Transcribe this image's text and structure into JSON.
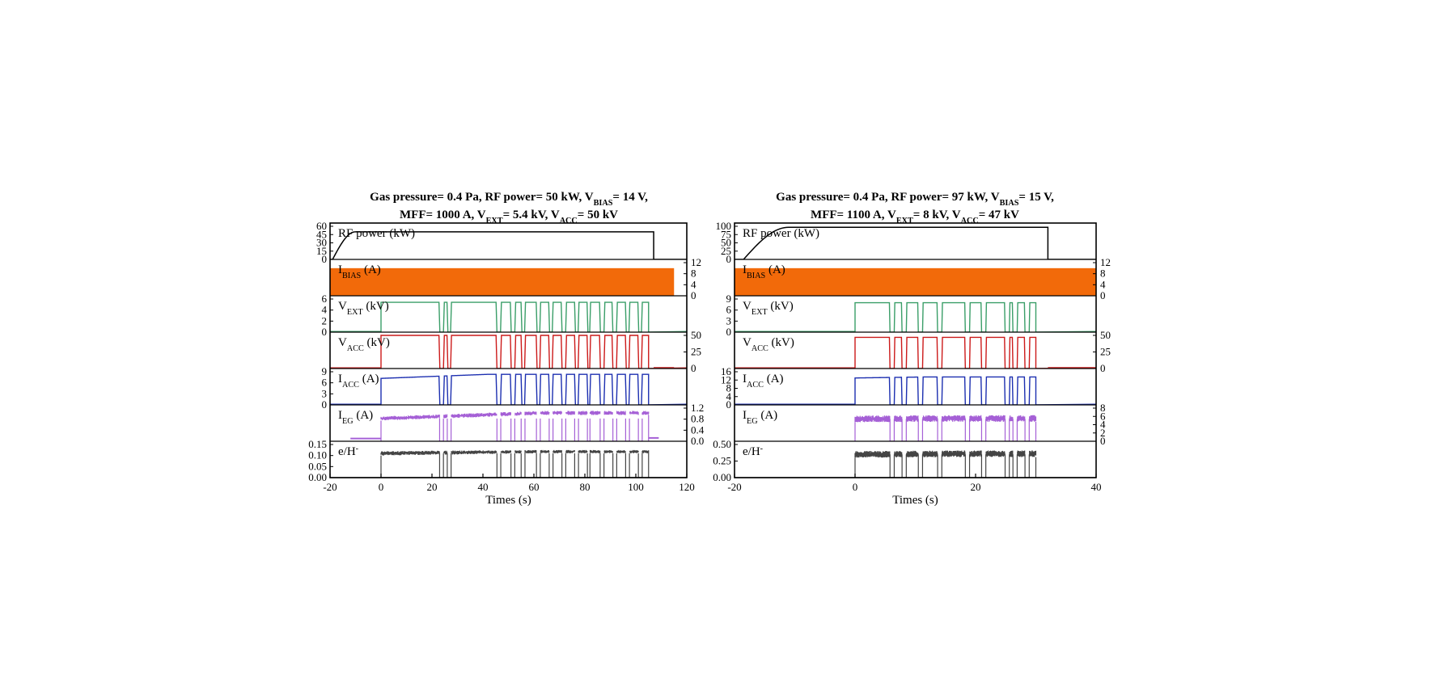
{
  "chart_data": [
    {
      "type": "line",
      "title_line1": "Gas pressure= 0.4 Pa, RF power= 50 kW, V_BIAS= 14 V,",
      "title_line2": "MFF= 1000 A, V_EXT= 5.4 kV, V_ACC= 50 kV",
      "xlabel": "Times (s)",
      "xlim": [
        -20,
        120
      ],
      "xticks": [
        -20,
        0,
        20,
        40,
        60,
        80,
        100,
        120
      ],
      "panels": [
        {
          "key": "rf",
          "label": "RF power (kW)",
          "axis": "left",
          "ylim": [
            0,
            60
          ],
          "ticks": [
            0,
            15,
            30,
            45,
            60
          ],
          "color": "#000000",
          "series": {
            "kind": "rf",
            "ramp_start": -19,
            "ramp_end": -10,
            "flat": 50,
            "end": 107,
            "end_value": 0
          }
        },
        {
          "key": "ibias",
          "label": "IBIAS (A)",
          "axis": "right",
          "ylim": [
            0,
            12
          ],
          "ticks": [
            0,
            4,
            8,
            12
          ],
          "color": "#f26a0a",
          "series": {
            "kind": "band",
            "x0": -20,
            "x1": 115,
            "low": 0,
            "high": 10
          }
        },
        {
          "key": "vext",
          "label": "VEXT (kV)",
          "axis": "left",
          "ylim": [
            0,
            6
          ],
          "ticks": [
            0,
            2,
            4,
            6
          ],
          "color": "#3a9e68",
          "series": {
            "kind": "pulses",
            "on": 5.4,
            "start": 0,
            "end": 105
          }
        },
        {
          "key": "vacc",
          "label": "VACC (kV)",
          "axis": "right",
          "ylim": [
            0,
            50
          ],
          "ticks": [
            0,
            25,
            50
          ],
          "color": "#cc1a1a",
          "series": {
            "kind": "pulses",
            "on": 50,
            "start": 0,
            "end": 105,
            "tail": 1.5
          }
        },
        {
          "key": "iacc",
          "label": "IACC (A)",
          "axis": "left",
          "ylim": [
            0,
            9
          ],
          "ticks": [
            0,
            3,
            6,
            9
          ],
          "color": "#1c2fb0",
          "series": {
            "kind": "pulses_rise",
            "on_start": 7.2,
            "on_end": 8.3,
            "start": 0,
            "end": 105
          }
        },
        {
          "key": "ieg",
          "label": "IEG (A)",
          "axis": "right",
          "ylim": [
            0,
            1.2
          ],
          "ticks": [
            0.0,
            0.4,
            0.8,
            1.2
          ],
          "color": "#a560d6",
          "series": {
            "kind": "band_pulses",
            "low_start": 0.75,
            "low_end": 0.95,
            "high_start": 0.9,
            "high_end": 1.1,
            "start": 0,
            "end": 105,
            "pre": 0.1,
            "post": 0.12
          }
        },
        {
          "key": "eh",
          "label": "e/H-",
          "axis": "left",
          "ylim": [
            0,
            0.15
          ],
          "ticks": [
            0.0,
            0.05,
            0.1,
            0.15
          ],
          "color": "#444444",
          "series": {
            "kind": "band_pulses",
            "low_start": 0.1,
            "low_end": 0.11,
            "high_start": 0.12,
            "high_end": 0.125,
            "start": 0,
            "end": 105,
            "pre": 0,
            "post": 0
          }
        }
      ],
      "pulse_off_times": [
        [
          23,
          24.5
        ],
        [
          26,
          27.5
        ],
        [
          45.5,
          47
        ],
        [
          51,
          52.5
        ],
        [
          55,
          56.5
        ],
        [
          61,
          62.5
        ],
        [
          66,
          67.5
        ],
        [
          71,
          72.5
        ],
        [
          76,
          77.5
        ],
        [
          81,
          82
        ],
        [
          86,
          87.5
        ],
        [
          91,
          92.5
        ],
        [
          96,
          97.5
        ],
        [
          101,
          102.5
        ]
      ],
      "tick_format": {
        "rf": 0,
        "ibias": 0,
        "vext": 0,
        "vacc": 0,
        "iacc": 0,
        "ieg": 1,
        "eh": 2
      }
    },
    {
      "type": "line",
      "title_line1": "Gas pressure= 0.4 Pa, RF power= 97 kW, V_BIAS= 15 V,",
      "title_line2": "MFF= 1100 A, V_EXT= 8 kV, V_ACC= 47 kV",
      "xlabel": "Times (s)",
      "xlim": [
        -20,
        40
      ],
      "xticks": [
        -20,
        0,
        20,
        40
      ],
      "panels": [
        {
          "key": "rf",
          "label": "RF power (kW)",
          "axis": "left",
          "ylim": [
            0,
            100
          ],
          "ticks": [
            0,
            25,
            50,
            75,
            100
          ],
          "color": "#000000",
          "series": {
            "kind": "rf",
            "ramp_start": -18.5,
            "ramp_end": -11,
            "flat": 97,
            "end": 32,
            "end_value": 0
          }
        },
        {
          "key": "ibias",
          "label": "IBIAS (A)",
          "axis": "right",
          "ylim": [
            0,
            12
          ],
          "ticks": [
            0,
            4,
            8,
            12
          ],
          "color": "#f26a0a",
          "series": {
            "kind": "band",
            "x0": -20,
            "x1": 40,
            "low": 0,
            "high": 10
          }
        },
        {
          "key": "vext",
          "label": "VEXT (kV)",
          "axis": "left",
          "ylim": [
            0,
            9
          ],
          "ticks": [
            0,
            3,
            6,
            9
          ],
          "color": "#3a9e68",
          "series": {
            "kind": "pulses",
            "on": 8,
            "start": 0,
            "end": 30
          }
        },
        {
          "key": "vacc",
          "label": "VACC (kV)",
          "axis": "right",
          "ylim": [
            0,
            50
          ],
          "ticks": [
            0,
            25,
            50
          ],
          "color": "#cc1a1a",
          "series": {
            "kind": "pulses",
            "on": 47,
            "start": 0,
            "end": 30,
            "tail": 1.5
          }
        },
        {
          "key": "iacc",
          "label": "IACC (A)",
          "axis": "left",
          "ylim": [
            0,
            16
          ],
          "ticks": [
            0,
            4,
            8,
            12,
            16
          ],
          "color": "#1c2fb0",
          "series": {
            "kind": "pulses_rise",
            "on_start": 13,
            "on_end": 13.5,
            "start": 0,
            "end": 30
          }
        },
        {
          "key": "ieg",
          "label": "IEG (A)",
          "axis": "right",
          "ylim": [
            0,
            8
          ],
          "ticks": [
            0,
            2,
            4,
            6,
            8
          ],
          "color": "#a560d6",
          "series": {
            "kind": "band_pulses",
            "low_start": 4.6,
            "low_end": 4.7,
            "high_start": 6.2,
            "high_end": 6.3,
            "start": 0,
            "end": 30,
            "pre": 0,
            "post": 0
          }
        },
        {
          "key": "eh",
          "label": "e/H-",
          "axis": "left",
          "ylim": [
            0,
            0.5
          ],
          "ticks": [
            0.0,
            0.25,
            0.5
          ],
          "color": "#444444",
          "series": {
            "kind": "band_pulses",
            "low_start": 0.3,
            "low_end": 0.31,
            "high_start": 0.4,
            "high_end": 0.41,
            "start": 0,
            "end": 30,
            "pre": 0,
            "post": 0
          }
        }
      ],
      "pulse_off_times": [
        [
          5.8,
          6.5
        ],
        [
          7.8,
          8.5
        ],
        [
          10.5,
          11.2
        ],
        [
          13.7,
          14.4
        ],
        [
          18.3,
          19
        ],
        [
          21,
          21.7
        ],
        [
          24.9,
          25.6
        ],
        [
          26.2,
          26.9
        ],
        [
          28.2,
          28.9
        ]
      ],
      "tick_format": {
        "rf": 0,
        "ibias": 0,
        "vext": 0,
        "vacc": 0,
        "iacc": 0,
        "ieg": 0,
        "eh": 2
      }
    }
  ]
}
